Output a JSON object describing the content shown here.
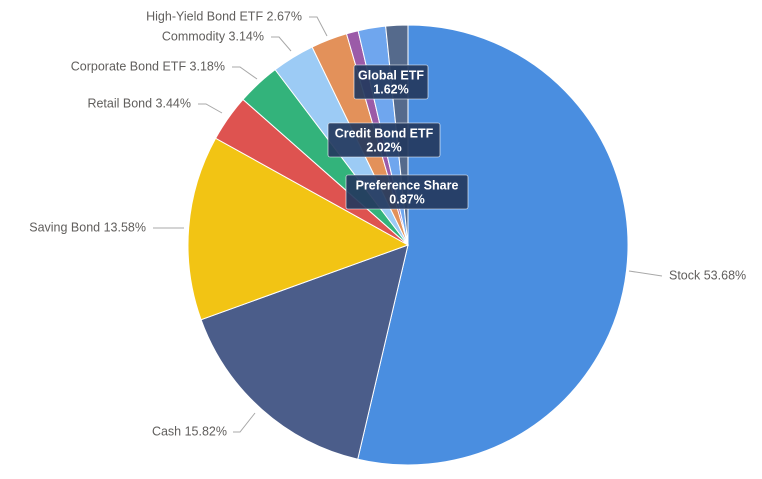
{
  "chart_data": {
    "type": "pie",
    "start_angle_deg": 0,
    "direction": "clockwise",
    "slices": [
      {
        "label": "Stock",
        "value": 53.68,
        "text": "Stock 53.68%",
        "color": "#4a8ee0",
        "label_style": "outside"
      },
      {
        "label": "Cash",
        "value": 15.82,
        "text": "Cash 15.82%",
        "color": "#4b5d8a",
        "label_style": "outside"
      },
      {
        "label": "Saving Bond",
        "value": 13.58,
        "text": "Saving Bond 13.58%",
        "color": "#f2c414",
        "label_style": "outside"
      },
      {
        "label": "Retail Bond",
        "value": 3.44,
        "text": "Retail Bond 3.44%",
        "color": "#de5350",
        "label_style": "outside"
      },
      {
        "label": "Corporate Bond ETF",
        "value": 3.18,
        "text": "Corporate Bond ETF 3.18%",
        "color": "#33b37b",
        "label_style": "outside"
      },
      {
        "label": "Commodity",
        "value": 3.14,
        "text": "Commodity 3.14%",
        "color": "#9ccbf5",
        "label_style": "outside"
      },
      {
        "label": "High-Yield Bond ETF",
        "value": 2.67,
        "text": "High-Yield Bond ETF 2.67%",
        "color": "#e3915a",
        "label_style": "outside"
      },
      {
        "label": "Preference Share",
        "value": 0.87,
        "line1": "Preference Share",
        "line2": "0.87%",
        "color": "#9b5ba8",
        "label_style": "tooltip"
      },
      {
        "label": "Credit Bond ETF",
        "value": 2.02,
        "line1": "Credit Bond ETF",
        "line2": "2.02%",
        "color": "#6fa6ee",
        "label_style": "tooltip"
      },
      {
        "label": "Global ETF",
        "value": 1.62,
        "line1": "Global ETF",
        "line2": "1.62%",
        "color": "#556a8c",
        "label_style": "tooltip"
      }
    ]
  }
}
